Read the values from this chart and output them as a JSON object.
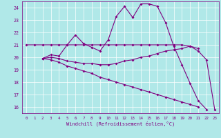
{
  "title": "",
  "xlabel": "Windchill (Refroidissement éolien,°C)",
  "bg_color": "#b0e8e8",
  "line_color": "#800080",
  "grid_color": "#ffffff",
  "xlim": [
    -0.5,
    23.5
  ],
  "ylim": [
    15.5,
    24.5
  ],
  "yticks": [
    16,
    17,
    18,
    19,
    20,
    21,
    22,
    23,
    24
  ],
  "xticks": [
    0,
    1,
    2,
    3,
    4,
    5,
    6,
    7,
    8,
    9,
    10,
    11,
    12,
    13,
    14,
    15,
    16,
    17,
    18,
    19,
    20,
    21,
    22,
    23
  ],
  "line1_x": [
    0,
    1,
    2,
    3,
    4,
    5,
    6,
    7,
    8,
    9,
    10,
    11,
    12,
    13,
    14,
    15,
    16,
    17,
    18,
    19,
    20,
    21,
    22,
    23
  ],
  "line1_y": [
    21.0,
    21.0,
    21.0,
    21.0,
    21.0,
    21.0,
    21.0,
    21.0,
    21.0,
    21.0,
    21.0,
    21.0,
    21.0,
    21.0,
    21.0,
    21.0,
    21.0,
    21.0,
    21.0,
    21.0,
    20.9,
    20.5,
    19.8,
    15.8
  ],
  "line2_x": [
    2,
    3,
    4,
    5,
    6,
    7,
    8,
    9,
    10,
    11,
    12,
    13,
    14,
    15,
    16,
    17,
    18,
    19,
    20,
    21,
    22
  ],
  "line2_y": [
    19.9,
    20.2,
    20.1,
    21.0,
    21.8,
    21.1,
    20.8,
    20.5,
    21.4,
    23.3,
    24.1,
    23.2,
    24.3,
    24.3,
    24.1,
    22.8,
    20.9,
    19.4,
    17.9,
    16.5,
    15.8
  ],
  "line3_x": [
    2,
    3,
    4,
    5,
    6,
    7,
    8,
    9,
    10,
    11,
    12,
    13,
    14,
    15,
    16,
    17,
    18,
    19,
    20,
    21
  ],
  "line3_y": [
    19.9,
    20.0,
    19.9,
    19.7,
    19.6,
    19.5,
    19.5,
    19.4,
    19.4,
    19.5,
    19.7,
    19.8,
    20.0,
    20.1,
    20.3,
    20.5,
    20.6,
    20.7,
    20.9,
    20.7
  ],
  "line4_x": [
    2,
    3,
    4,
    5,
    6,
    7,
    8,
    9,
    10,
    11,
    12,
    13,
    14,
    15,
    16,
    17,
    18,
    19,
    20,
    21
  ],
  "line4_y": [
    19.9,
    19.8,
    19.6,
    19.3,
    19.1,
    18.9,
    18.7,
    18.4,
    18.2,
    18.0,
    17.8,
    17.6,
    17.4,
    17.2,
    17.0,
    16.8,
    16.6,
    16.4,
    16.2,
    16.0
  ]
}
